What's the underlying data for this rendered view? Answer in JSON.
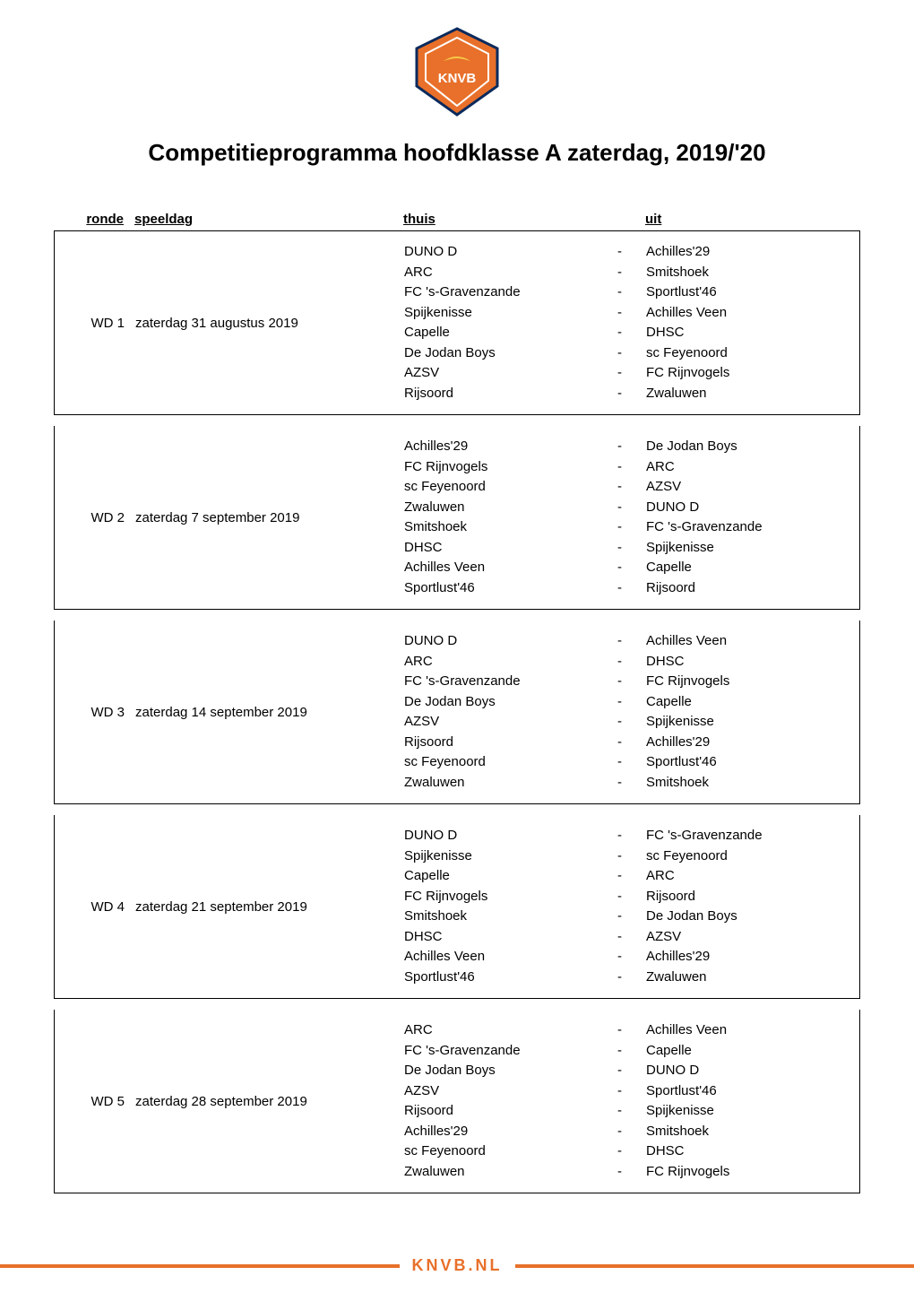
{
  "title": "Competitieprogramma hoofdklasse A zaterdag, 2019/'20",
  "logo": {
    "fill": "#e8702a",
    "stroke": "#0a2a5c",
    "text": "KNVB"
  },
  "columns": {
    "ronde": "ronde",
    "speeldag": "speeldag",
    "thuis": "thuis",
    "uit": "uit"
  },
  "dash": "-",
  "footer": "KNVB.NL",
  "rounds": [
    {
      "ronde": "WD 1",
      "speeldag": "zaterdag 31 augustus 2019",
      "matches": [
        {
          "home": "DUNO D",
          "away": "Achilles'29"
        },
        {
          "home": "ARC",
          "away": "Smitshoek"
        },
        {
          "home": "FC 's-Gravenzande",
          "away": "Sportlust'46"
        },
        {
          "home": "Spijkenisse",
          "away": "Achilles Veen"
        },
        {
          "home": "Capelle",
          "away": "DHSC"
        },
        {
          "home": "De Jodan Boys",
          "away": "sc Feyenoord"
        },
        {
          "home": "AZSV",
          "away": "FC Rijnvogels"
        },
        {
          "home": "Rijsoord",
          "away": "Zwaluwen"
        }
      ]
    },
    {
      "ronde": "WD 2",
      "speeldag": "zaterdag 7 september 2019",
      "matches": [
        {
          "home": "Achilles'29",
          "away": "De Jodan Boys"
        },
        {
          "home": "FC Rijnvogels",
          "away": "ARC"
        },
        {
          "home": "sc Feyenoord",
          "away": "AZSV"
        },
        {
          "home": "Zwaluwen",
          "away": "DUNO D"
        },
        {
          "home": "Smitshoek",
          "away": "FC 's-Gravenzande"
        },
        {
          "home": "DHSC",
          "away": "Spijkenisse"
        },
        {
          "home": "Achilles Veen",
          "away": "Capelle"
        },
        {
          "home": "Sportlust'46",
          "away": "Rijsoord"
        }
      ]
    },
    {
      "ronde": "WD 3",
      "speeldag": "zaterdag 14 september 2019",
      "matches": [
        {
          "home": "DUNO D",
          "away": "Achilles Veen"
        },
        {
          "home": "ARC",
          "away": "DHSC"
        },
        {
          "home": "FC 's-Gravenzande",
          "away": "FC Rijnvogels"
        },
        {
          "home": "De Jodan Boys",
          "away": "Capelle"
        },
        {
          "home": "AZSV",
          "away": "Spijkenisse"
        },
        {
          "home": "Rijsoord",
          "away": "Achilles'29"
        },
        {
          "home": "sc Feyenoord",
          "away": "Sportlust'46"
        },
        {
          "home": "Zwaluwen",
          "away": "Smitshoek"
        }
      ]
    },
    {
      "ronde": "WD 4",
      "speeldag": "zaterdag 21 september 2019",
      "matches": [
        {
          "home": "DUNO D",
          "away": "FC 's-Gravenzande"
        },
        {
          "home": "Spijkenisse",
          "away": "sc Feyenoord"
        },
        {
          "home": "Capelle",
          "away": "ARC"
        },
        {
          "home": "FC Rijnvogels",
          "away": "Rijsoord"
        },
        {
          "home": "Smitshoek",
          "away": "De Jodan Boys"
        },
        {
          "home": "DHSC",
          "away": "AZSV"
        },
        {
          "home": "Achilles Veen",
          "away": "Achilles'29"
        },
        {
          "home": "Sportlust'46",
          "away": "Zwaluwen"
        }
      ]
    },
    {
      "ronde": "WD 5",
      "speeldag": "zaterdag 28 september 2019",
      "matches": [
        {
          "home": "ARC",
          "away": "Achilles Veen"
        },
        {
          "home": "FC 's-Gravenzande",
          "away": "Capelle"
        },
        {
          "home": "De Jodan Boys",
          "away": "DUNO D"
        },
        {
          "home": "AZSV",
          "away": "Sportlust'46"
        },
        {
          "home": "Rijsoord",
          "away": "Spijkenisse"
        },
        {
          "home": "Achilles'29",
          "away": "Smitshoek"
        },
        {
          "home": "sc Feyenoord",
          "away": "DHSC"
        },
        {
          "home": "Zwaluwen",
          "away": "FC Rijnvogels"
        }
      ]
    }
  ]
}
